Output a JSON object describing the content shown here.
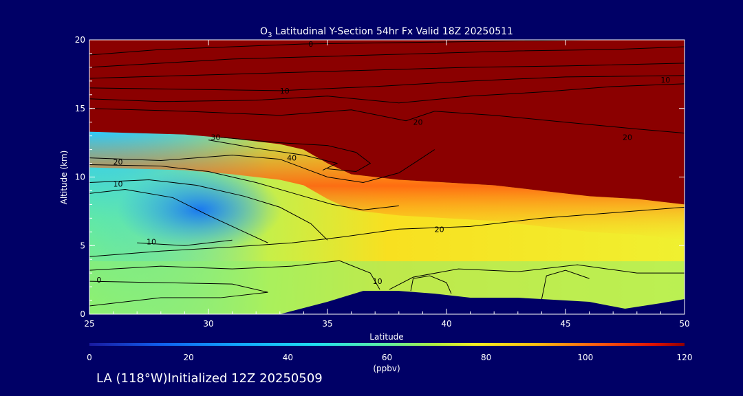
{
  "chart_data": {
    "type": "heatmap",
    "title_prefix": "O",
    "title_sub": "3",
    "title_rest": " Latitudinal Y-Section 54hr  Fx Valid 18Z 20250511",
    "xlabel": "Latitude",
    "ylabel": "Altitude (km)",
    "xlim": [
      25,
      50
    ],
    "ylim": [
      0,
      20
    ],
    "x_ticks": [
      "25",
      "30",
      "35",
      "40",
      "45",
      "50"
    ],
    "y_ticks": [
      "0",
      "5",
      "10",
      "15",
      "20"
    ],
    "colorbar": {
      "range": [
        0,
        120
      ],
      "ticks": [
        "0",
        "20",
        "40",
        "60",
        "80",
        "100",
        "120"
      ],
      "unit": "(ppbv)"
    },
    "tropopause_altitude_km": [
      [
        25,
        13.3
      ],
      [
        27,
        13.2
      ],
      [
        29,
        13.1
      ],
      [
        31,
        12.8
      ],
      [
        33,
        12.4
      ],
      [
        34,
        12.0
      ],
      [
        35,
        11.0
      ],
      [
        36,
        10.2
      ],
      [
        38,
        9.8
      ],
      [
        40,
        9.6
      ],
      [
        42,
        9.4
      ],
      [
        44,
        9.0
      ],
      [
        46,
        8.6
      ],
      [
        48,
        8.4
      ],
      [
        50,
        8.0
      ]
    ],
    "terrain_altitude_km": [
      [
        33,
        0
      ],
      [
        35,
        0.9
      ],
      [
        36.5,
        1.7
      ],
      [
        38,
        1.7
      ],
      [
        39.5,
        1.5
      ],
      [
        41,
        1.2
      ],
      [
        43,
        1.2
      ],
      [
        44,
        1.1
      ],
      [
        46,
        0.9
      ],
      [
        47.5,
        0.4
      ],
      [
        49,
        0.8
      ],
      [
        50,
        1.1
      ]
    ],
    "contour_labels": [
      {
        "text": "0",
        "x": 34.3,
        "y": 19.7
      },
      {
        "text": "10",
        "x": 33.2,
        "y": 16.3
      },
      {
        "text": "10",
        "x": 49.2,
        "y": 17.1
      },
      {
        "text": "20",
        "x": 38.8,
        "y": 14.0
      },
      {
        "text": "20",
        "x": 47.6,
        "y": 12.9
      },
      {
        "text": "30",
        "x": 30.3,
        "y": 12.9
      },
      {
        "text": "40",
        "x": 33.5,
        "y": 11.4
      },
      {
        "text": "20",
        "x": 26.2,
        "y": 11.1
      },
      {
        "text": "10",
        "x": 26.2,
        "y": 9.5
      },
      {
        "text": "10",
        "x": 27.6,
        "y": 5.3
      },
      {
        "text": "20",
        "x": 39.7,
        "y": 6.2
      },
      {
        "text": "0",
        "x": 25.4,
        "y": 2.5
      },
      {
        "text": "10",
        "x": 37.1,
        "y": 2.4
      }
    ]
  },
  "footer": "LA (118°W)Initialized 12Z 20250509"
}
